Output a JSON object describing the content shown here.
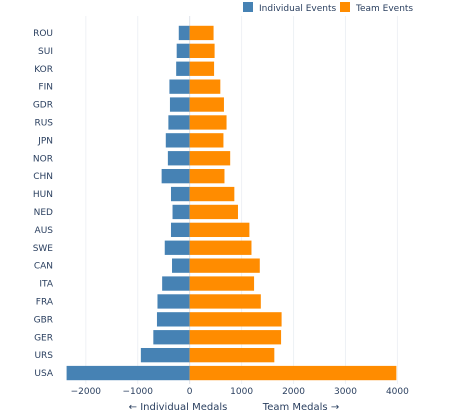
{
  "chart_data": {
    "type": "bar",
    "orientation": "horizontal",
    "categories": [
      "ROU",
      "SUI",
      "KOR",
      "FIN",
      "GDR",
      "RUS",
      "JPN",
      "NOR",
      "CHN",
      "HUN",
      "NED",
      "AUS",
      "SWE",
      "CAN",
      "ITA",
      "FRA",
      "GBR",
      "GER",
      "URS",
      "USA"
    ],
    "series": [
      {
        "name": "Individual Events",
        "color": "#4682b4",
        "values": [
          -210,
          -250,
          -260,
          -390,
          -380,
          -410,
          -460,
          -420,
          -540,
          -360,
          -330,
          -360,
          -480,
          -340,
          -530,
          -620,
          -630,
          -700,
          -940,
          -2370
        ]
      },
      {
        "name": "Team Events",
        "color": "#ff8c00",
        "values": [
          460,
          480,
          470,
          590,
          660,
          710,
          650,
          780,
          670,
          860,
          930,
          1150,
          1190,
          1350,
          1240,
          1370,
          1770,
          1760,
          1630,
          3980
        ]
      }
    ],
    "xlim": [
      -2400,
      4000
    ],
    "xticks": [
      -2000,
      -1000,
      0,
      1000,
      2000,
      3000,
      4000
    ],
    "xtick_labels": [
      "−2000",
      "−1000",
      "0",
      "1000",
      "2000",
      "3000",
      "4000"
    ],
    "xlabel_left": "← Individual Medals",
    "xlabel_right": "Team Medals →",
    "grid": true,
    "legend": "top-right"
  }
}
